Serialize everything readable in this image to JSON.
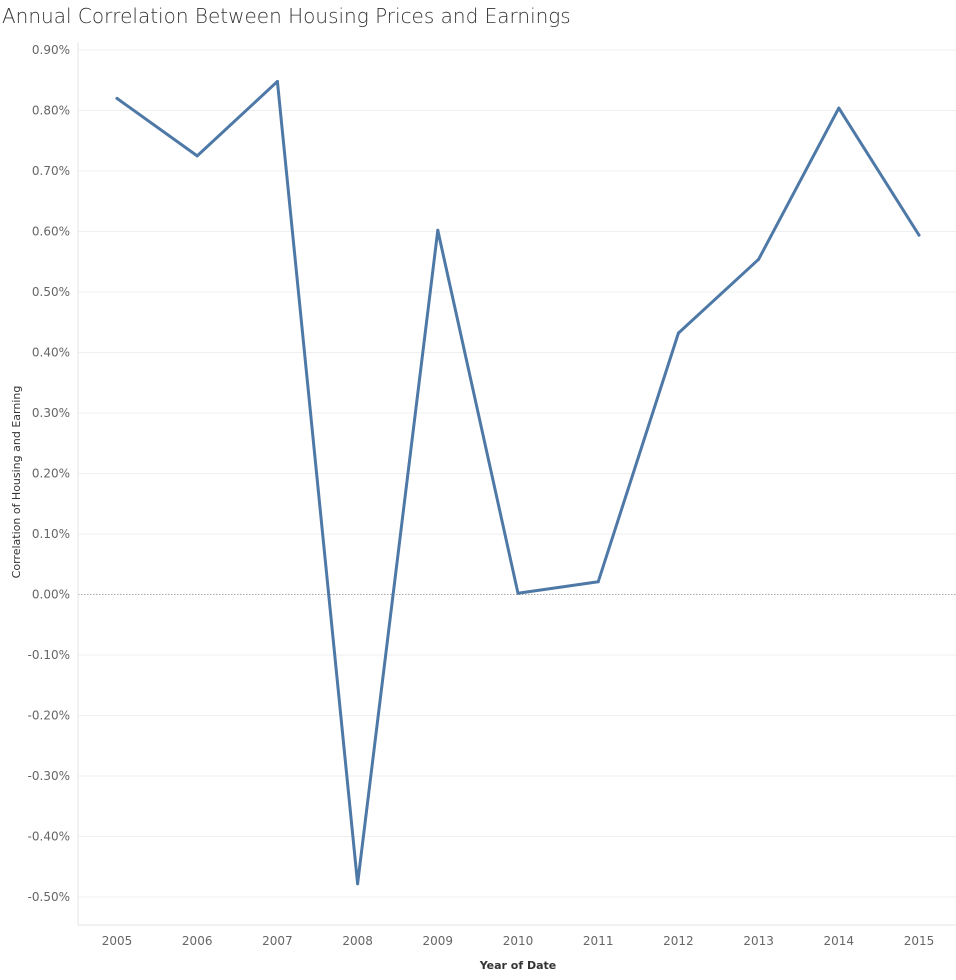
{
  "chart_data": {
    "type": "line",
    "title": "Annual Correlation Between Housing Prices and Earnings",
    "xlabel": "Year of Date",
    "ylabel": "Correlation of Housing and Earning",
    "x": [
      "2005",
      "2006",
      "2007",
      "2008",
      "2009",
      "2010",
      "2011",
      "2012",
      "2013",
      "2014",
      "2015"
    ],
    "series": [
      {
        "values": [
          0.82,
          0.725,
          0.848,
          -0.478,
          0.602,
          0.002,
          0.021,
          0.432,
          0.554,
          0.804,
          0.594
        ]
      }
    ],
    "y_unit": "%",
    "ylim": [
      -0.55,
      0.9
    ],
    "yticks": [
      0.9,
      0.8,
      0.7,
      0.6,
      0.5,
      0.4,
      0.3,
      0.2,
      0.1,
      0.0,
      -0.1,
      -0.2,
      -0.3,
      -0.4,
      -0.5
    ],
    "ytick_labels": [
      "0.90%",
      "0.80%",
      "0.70%",
      "0.60%",
      "0.50%",
      "0.40%",
      "0.30%",
      "0.20%",
      "0.10%",
      "0.00%",
      "-0.10%",
      "-0.20%",
      "-0.30%",
      "-0.40%",
      "-0.50%"
    ],
    "grid": true,
    "zero_line": true,
    "line_color": "#4e79a7"
  }
}
